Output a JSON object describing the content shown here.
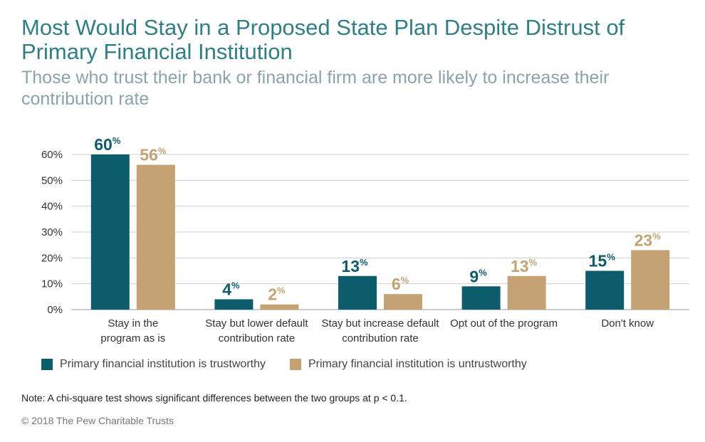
{
  "header": {
    "title": "Most Would Stay in a Proposed State Plan Despite Distrust of Primary Financial Institution",
    "subtitle": "Those who trust their bank or financial firm are more likely to increase their contribution rate"
  },
  "chart_data": {
    "type": "bar",
    "categories": [
      [
        "Stay in the",
        "program as is"
      ],
      [
        "Stay but lower default",
        "contribution rate"
      ],
      [
        "Stay but increase default",
        "contribution rate"
      ],
      [
        "Opt out of the program"
      ],
      [
        "Don't know"
      ]
    ],
    "series": [
      {
        "name": "Primary financial institution is trustworthy",
        "color": "#0d5c6b",
        "values": [
          60,
          4,
          13,
          9,
          15
        ]
      },
      {
        "name": "Primary financial institution is untrustworthy",
        "color": "#c4a273",
        "values": [
          56,
          2,
          6,
          13,
          23
        ]
      }
    ],
    "yticks": [
      "0%",
      "10%",
      "20%",
      "30%",
      "40%",
      "50%",
      "60%"
    ],
    "ylim": [
      0,
      60
    ],
    "value_suffix": "%",
    "grid": true,
    "legend": "bottom-left"
  },
  "footer": {
    "note": "Note: A chi-square test shows significant differences between the two groups at p < 0.1.",
    "copyright": "© 2018 The Pew Charitable Trusts"
  }
}
